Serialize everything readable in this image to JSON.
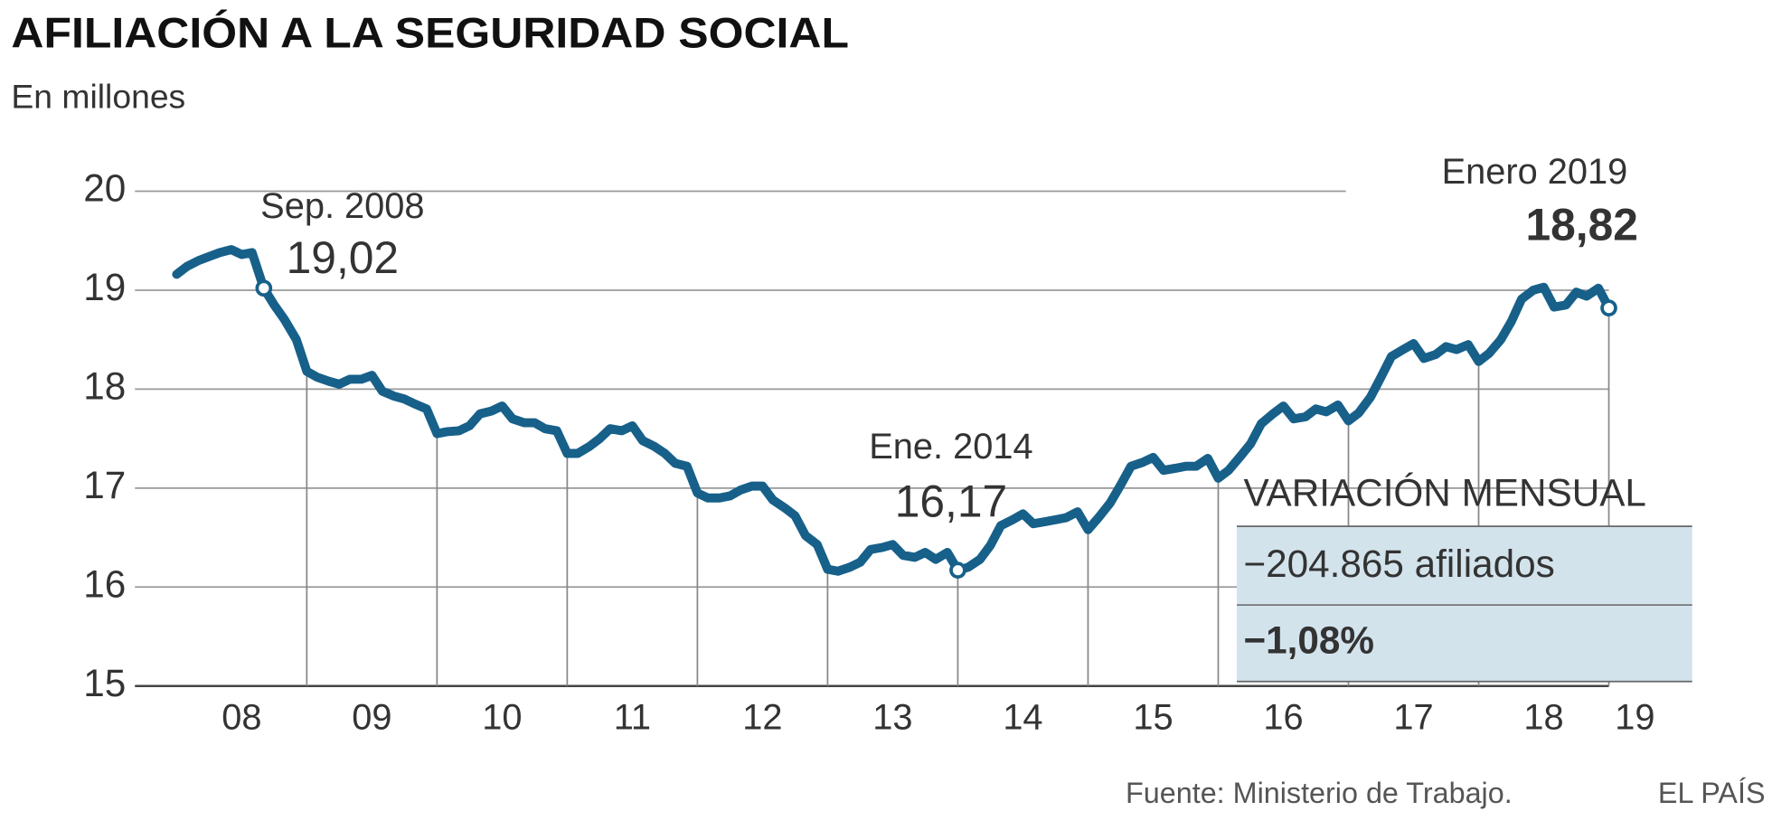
{
  "chart_data": {
    "type": "line",
    "title": "AFILIACIÓN A LA SEGURIDAD SOCIAL",
    "subtitle": "En millones",
    "color": "#17608a",
    "x": [
      2008,
      2008.08,
      2008.17,
      2008.25,
      2008.33,
      2008.42,
      2008.5,
      2008.58,
      2008.67,
      2008.75,
      2008.83,
      2008.92,
      2009,
      2009.08,
      2009.17,
      2009.25,
      2009.33,
      2009.42,
      2009.5,
      2009.58,
      2009.67,
      2009.75,
      2009.83,
      2009.92,
      2010,
      2010.08,
      2010.17,
      2010.25,
      2010.33,
      2010.42,
      2010.5,
      2010.58,
      2010.67,
      2010.75,
      2010.83,
      2010.92,
      2011,
      2011.08,
      2011.17,
      2011.25,
      2011.33,
      2011.42,
      2011.5,
      2011.58,
      2011.67,
      2011.75,
      2011.83,
      2011.92,
      2012,
      2012.08,
      2012.17,
      2012.25,
      2012.33,
      2012.42,
      2012.5,
      2012.58,
      2012.67,
      2012.75,
      2012.83,
      2012.92,
      2013,
      2013.08,
      2013.17,
      2013.25,
      2013.33,
      2013.42,
      2013.5,
      2013.58,
      2013.67,
      2013.75,
      2013.83,
      2013.92,
      2014,
      2014.08,
      2014.17,
      2014.25,
      2014.33,
      2014.42,
      2014.5,
      2014.58,
      2014.67,
      2014.75,
      2014.83,
      2014.92,
      2015,
      2015.08,
      2015.17,
      2015.25,
      2015.33,
      2015.42,
      2015.5,
      2015.58,
      2015.67,
      2015.75,
      2015.83,
      2015.92,
      2016,
      2016.08,
      2016.17,
      2016.25,
      2016.33,
      2016.42,
      2016.5,
      2016.58,
      2016.67,
      2016.75,
      2016.83,
      2016.92,
      2017,
      2017.08,
      2017.17,
      2017.25,
      2017.33,
      2017.42,
      2017.5,
      2017.58,
      2017.67,
      2017.75,
      2017.83,
      2017.92,
      2018,
      2018.08,
      2018.17,
      2018.25,
      2018.33,
      2018.42,
      2018.5,
      2018.58,
      2018.67,
      2018.75,
      2018.83,
      2018.92,
      2019
    ],
    "values": [
      19.16,
      19.24,
      19.3,
      19.34,
      19.38,
      19.41,
      19.36,
      19.38,
      19.02,
      18.85,
      18.7,
      18.5,
      18.18,
      18.12,
      18.08,
      18.05,
      18.1,
      18.1,
      18.14,
      17.98,
      17.93,
      17.9,
      17.85,
      17.8,
      17.55,
      17.57,
      17.58,
      17.63,
      17.75,
      17.78,
      17.83,
      17.7,
      17.66,
      17.66,
      17.6,
      17.58,
      17.35,
      17.35,
      17.42,
      17.5,
      17.6,
      17.58,
      17.63,
      17.48,
      17.42,
      17.35,
      17.25,
      17.22,
      16.95,
      16.9,
      16.9,
      16.92,
      16.98,
      17.02,
      17.02,
      16.88,
      16.8,
      16.72,
      16.52,
      16.43,
      16.18,
      16.16,
      16.2,
      16.25,
      16.38,
      16.4,
      16.43,
      16.32,
      16.3,
      16.35,
      16.28,
      16.35,
      16.17,
      16.2,
      16.28,
      16.42,
      16.62,
      16.68,
      16.74,
      16.64,
      16.66,
      16.68,
      16.7,
      16.76,
      16.58,
      16.7,
      16.85,
      17.03,
      17.22,
      17.26,
      17.31,
      17.18,
      17.2,
      17.22,
      17.22,
      17.3,
      17.1,
      17.18,
      17.32,
      17.45,
      17.65,
      17.75,
      17.83,
      17.7,
      17.72,
      17.8,
      17.77,
      17.84,
      17.68,
      17.76,
      17.92,
      18.12,
      18.33,
      18.4,
      18.46,
      18.31,
      18.35,
      18.43,
      18.4,
      18.45,
      18.28,
      18.36,
      18.5,
      18.68,
      18.91,
      19.0,
      19.03,
      18.83,
      18.85,
      18.98,
      18.94,
      19.02,
      18.82
    ],
    "xlim": [
      2007.68,
      2019.64
    ],
    "ylim": [
      15,
      20
    ],
    "yticks": [
      15,
      16,
      17,
      18,
      19,
      20
    ],
    "xticks": [
      {
        "value": 2008.5,
        "label": "08"
      },
      {
        "value": 2009.5,
        "label": "09"
      },
      {
        "value": 2010.5,
        "label": "10"
      },
      {
        "value": 2011.5,
        "label": "11"
      },
      {
        "value": 2012.5,
        "label": "12"
      },
      {
        "value": 2013.5,
        "label": "13"
      },
      {
        "value": 2014.5,
        "label": "14"
      },
      {
        "value": 2015.5,
        "label": "15"
      },
      {
        "value": 2016.5,
        "label": "16"
      },
      {
        "value": 2017.5,
        "label": "17"
      },
      {
        "value": 2018.5,
        "label": "18"
      },
      {
        "value": 2019.2,
        "label": "19"
      }
    ],
    "grid": true,
    "annotations": [
      {
        "x": 2008.67,
        "label": "Sep. 2008",
        "value_label": "19,02"
      },
      {
        "x": 2014,
        "label": "Ene. 2014",
        "value_label": "16,17"
      },
      {
        "x": 2019,
        "label": "Enero 2019",
        "value_label": "18,82"
      }
    ],
    "summary_box": {
      "title": "VARIACIÓN MENSUAL",
      "rows": [
        "−204.865 afiliados",
        "−1,08%"
      ]
    },
    "source": "Fuente: Ministerio de Trabajo.",
    "brand": "EL PAÍS"
  }
}
